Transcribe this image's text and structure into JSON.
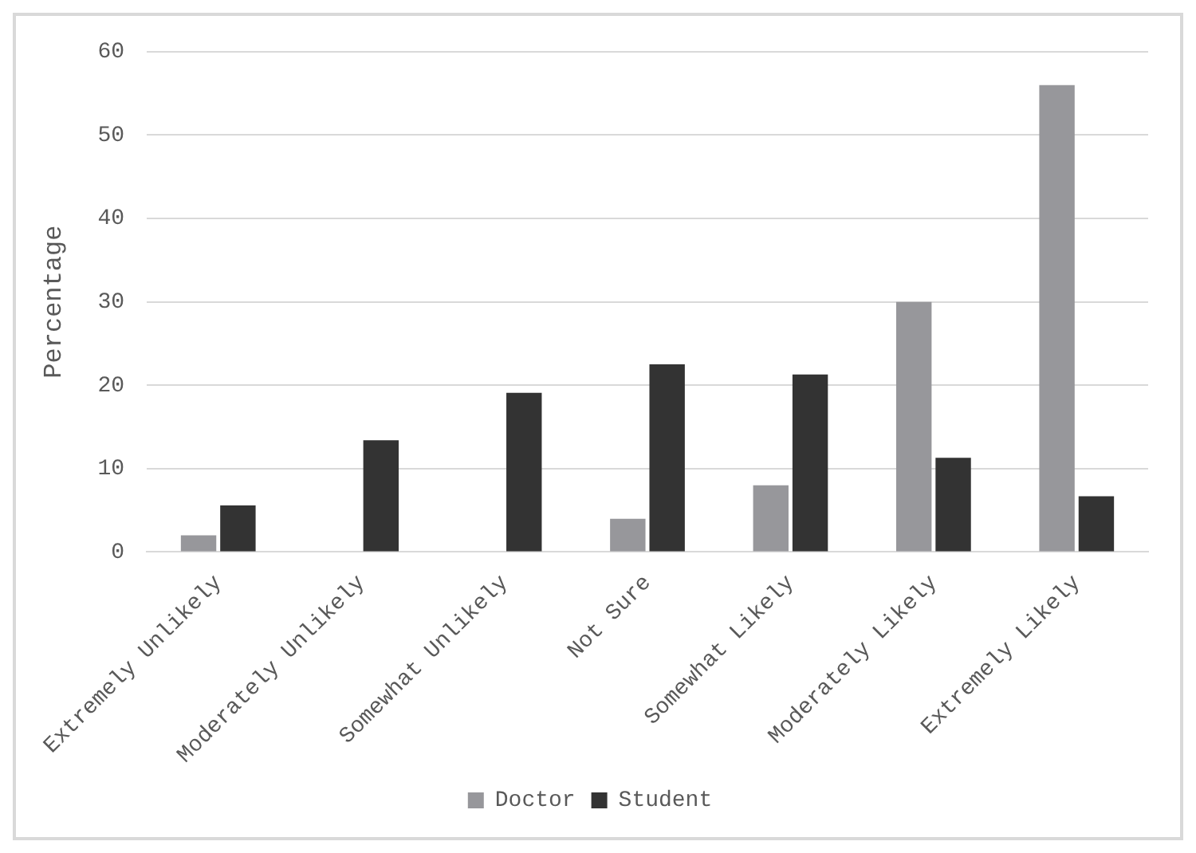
{
  "chart_data": {
    "type": "bar",
    "ylabel": "Percentage",
    "categories": [
      "Extremely Unlikely",
      "Moderately Unlikely",
      "Somewhat Unlikely",
      "Not Sure",
      "Somewhat Likely",
      "Moderately Likely",
      "Extremely Likely"
    ],
    "series": [
      {
        "name": "Doctor",
        "color": "#97979b",
        "values": [
          2,
          0,
          0,
          4,
          8,
          30,
          56
        ]
      },
      {
        "name": "Student",
        "color": "#333333",
        "values": [
          5.6,
          13.4,
          19.1,
          22.5,
          21.3,
          11.3,
          6.7
        ]
      }
    ],
    "ylim": [
      0,
      60
    ],
    "yticks": [
      0,
      10,
      20,
      30,
      40,
      50,
      60
    ],
    "grid": "y",
    "legend": "bottom"
  }
}
